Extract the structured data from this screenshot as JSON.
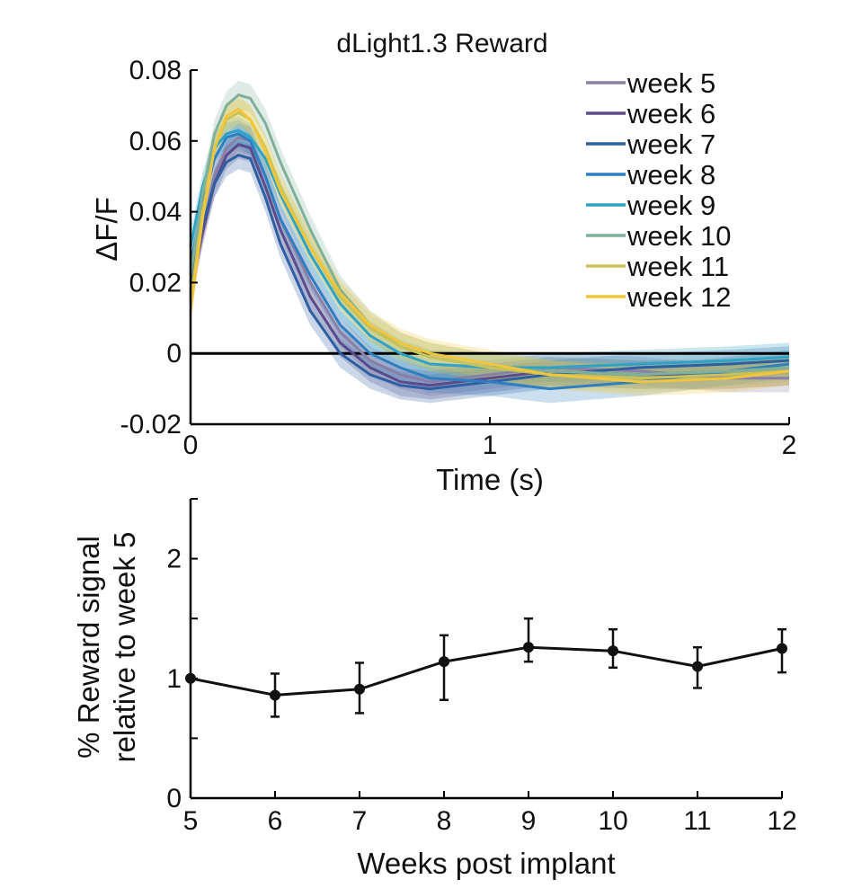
{
  "chart_data": [
    {
      "type": "line",
      "title": "dLight1.3 Reward",
      "xlabel": "Time (s)",
      "ylabel": "ΔF/F",
      "xlim": [
        0,
        2
      ],
      "ylim": [
        -0.02,
        0.08
      ],
      "xticks": [
        0,
        1,
        2
      ],
      "xtick_labels": [
        "0",
        "1",
        "2"
      ],
      "yticks": [
        -0.02,
        0,
        0.02,
        0.04,
        0.06,
        0.08
      ],
      "ytick_labels": [
        "-0.02",
        "0",
        "0.02",
        "0.04",
        "0.06",
        "0.08"
      ],
      "zero_line": true,
      "legend_position": "top-right",
      "shading": "mean ± SEM",
      "series": [
        {
          "name": "week 5",
          "color": "#8a7fa6",
          "sem": 0.004,
          "x": [
            0,
            0.04,
            0.08,
            0.12,
            0.16,
            0.2,
            0.25,
            0.3,
            0.4,
            0.5,
            0.6,
            0.7,
            0.8,
            1.0,
            1.2,
            1.5,
            1.8,
            2.0
          ],
          "y": [
            0.018,
            0.035,
            0.05,
            0.058,
            0.061,
            0.06,
            0.05,
            0.038,
            0.02,
            0.006,
            -0.002,
            -0.006,
            -0.008,
            -0.006,
            -0.004,
            -0.005,
            -0.007,
            -0.007
          ]
        },
        {
          "name": "week 6",
          "color": "#5b4b8a",
          "sem": 0.004,
          "x": [
            0,
            0.04,
            0.08,
            0.12,
            0.16,
            0.2,
            0.25,
            0.3,
            0.4,
            0.5,
            0.6,
            0.7,
            0.8,
            1.0,
            1.2,
            1.5,
            1.8,
            2.0
          ],
          "y": [
            0.017,
            0.034,
            0.048,
            0.056,
            0.059,
            0.058,
            0.047,
            0.035,
            0.016,
            0.003,
            -0.004,
            -0.008,
            -0.009,
            -0.007,
            -0.005,
            -0.006,
            -0.006,
            -0.005
          ]
        },
        {
          "name": "week 7",
          "color": "#2e5fa3",
          "sem": 0.004,
          "x": [
            0,
            0.04,
            0.08,
            0.12,
            0.16,
            0.2,
            0.25,
            0.3,
            0.4,
            0.5,
            0.6,
            0.7,
            0.8,
            1.0,
            1.2,
            1.5,
            1.8,
            2.0
          ],
          "y": [
            0.02,
            0.036,
            0.048,
            0.054,
            0.056,
            0.055,
            0.044,
            0.031,
            0.012,
            0.0,
            -0.006,
            -0.009,
            -0.01,
            -0.008,
            -0.006,
            -0.004,
            -0.003,
            -0.002
          ]
        },
        {
          "name": "week 8",
          "color": "#2f7fc0",
          "sem": 0.004,
          "x": [
            0,
            0.04,
            0.08,
            0.12,
            0.16,
            0.2,
            0.25,
            0.3,
            0.4,
            0.5,
            0.6,
            0.7,
            0.8,
            1.0,
            1.2,
            1.5,
            1.8,
            2.0
          ],
          "y": [
            0.025,
            0.042,
            0.055,
            0.061,
            0.062,
            0.06,
            0.05,
            0.038,
            0.022,
            0.008,
            0.0,
            -0.004,
            -0.007,
            -0.008,
            -0.01,
            -0.008,
            -0.005,
            -0.003
          ]
        },
        {
          "name": "week 9",
          "color": "#2ea3c7",
          "sem": 0.004,
          "x": [
            0,
            0.04,
            0.08,
            0.12,
            0.16,
            0.2,
            0.25,
            0.3,
            0.4,
            0.5,
            0.6,
            0.7,
            0.8,
            1.0,
            1.2,
            1.5,
            1.8,
            2.0
          ],
          "y": [
            0.03,
            0.047,
            0.058,
            0.062,
            0.063,
            0.061,
            0.055,
            0.045,
            0.028,
            0.014,
            0.005,
            0.0,
            -0.003,
            -0.004,
            -0.004,
            -0.003,
            -0.002,
            -0.001
          ]
        },
        {
          "name": "week 10",
          "color": "#7fb09a",
          "sem": 0.004,
          "x": [
            0,
            0.04,
            0.08,
            0.12,
            0.16,
            0.2,
            0.25,
            0.3,
            0.4,
            0.5,
            0.6,
            0.7,
            0.8,
            1.0,
            1.2,
            1.5,
            1.8,
            2.0
          ],
          "y": [
            0.022,
            0.045,
            0.062,
            0.07,
            0.073,
            0.072,
            0.065,
            0.054,
            0.035,
            0.018,
            0.008,
            0.002,
            -0.001,
            -0.004,
            -0.005,
            -0.006,
            -0.005,
            -0.004
          ]
        },
        {
          "name": "week 11",
          "color": "#c9c257",
          "sem": 0.004,
          "x": [
            0,
            0.04,
            0.08,
            0.12,
            0.16,
            0.2,
            0.25,
            0.3,
            0.4,
            0.5,
            0.6,
            0.7,
            0.8,
            1.0,
            1.2,
            1.5,
            1.8,
            2.0
          ],
          "y": [
            0.015,
            0.04,
            0.058,
            0.066,
            0.068,
            0.066,
            0.058,
            0.047,
            0.03,
            0.016,
            0.007,
            0.002,
            -0.001,
            -0.004,
            -0.006,
            -0.007,
            -0.006,
            -0.005
          ]
        },
        {
          "name": "week 12",
          "color": "#f2c63c",
          "sem": 0.004,
          "x": [
            0,
            0.04,
            0.08,
            0.12,
            0.16,
            0.2,
            0.25,
            0.3,
            0.4,
            0.5,
            0.6,
            0.7,
            0.8,
            1.0,
            1.2,
            1.5,
            1.8,
            2.0
          ],
          "y": [
            0.012,
            0.038,
            0.058,
            0.067,
            0.069,
            0.066,
            0.057,
            0.046,
            0.03,
            0.017,
            0.008,
            0.003,
            0.0,
            -0.003,
            -0.006,
            -0.008,
            -0.007,
            -0.005
          ]
        }
      ]
    },
    {
      "type": "line",
      "title": "",
      "xlabel": "Weeks post implant",
      "ylabel_lines": [
        "% Reward signal",
        "relative to week 5"
      ],
      "xlim": [
        5,
        12
      ],
      "ylim": [
        0,
        2.5
      ],
      "xticks": [
        5,
        6,
        7,
        8,
        9,
        10,
        11,
        12
      ],
      "xtick_labels": [
        "5",
        "6",
        "7",
        "8",
        "9",
        "10",
        "11",
        "12"
      ],
      "yticks": [
        0,
        0.5,
        1,
        1.5,
        2,
        2.5
      ],
      "ytick_labels": [
        "0",
        "",
        "1",
        "",
        "2",
        ""
      ],
      "series": [
        {
          "name": "reward signal",
          "color": "#111111",
          "x": [
            5,
            6,
            7,
            8,
            9,
            10,
            11,
            12
          ],
          "y": [
            1.0,
            0.86,
            0.91,
            1.14,
            1.26,
            1.23,
            1.1,
            1.25
          ],
          "err_low": [
            null,
            0.18,
            0.2,
            0.32,
            0.12,
            0.14,
            0.18,
            0.2
          ],
          "err_high": [
            null,
            0.18,
            0.22,
            0.22,
            0.24,
            0.18,
            0.16,
            0.16
          ]
        }
      ]
    }
  ]
}
